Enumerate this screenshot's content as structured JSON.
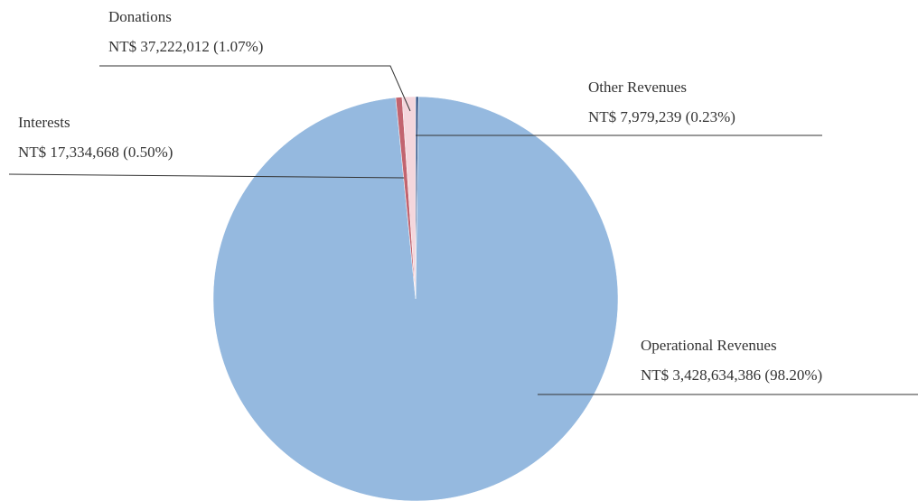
{
  "chart_data": {
    "type": "pie",
    "categories": [
      "Other Revenues",
      "Operational Revenues",
      "Interests",
      "Donations"
    ],
    "values": [
      0.23,
      98.2,
      0.5,
      1.07
    ],
    "value_labels": [
      "NT$ 7,979,239 (0.23%)",
      "NT$ 3,428,634,386 (98.20%)",
      "NT$ 17,334,668 (0.50%)",
      "NT$ 37,222,012 (1.07%)"
    ],
    "colors": [
      "#3b5b8c",
      "#95b9df",
      "#c2646f",
      "#f4d6dc"
    ]
  }
}
